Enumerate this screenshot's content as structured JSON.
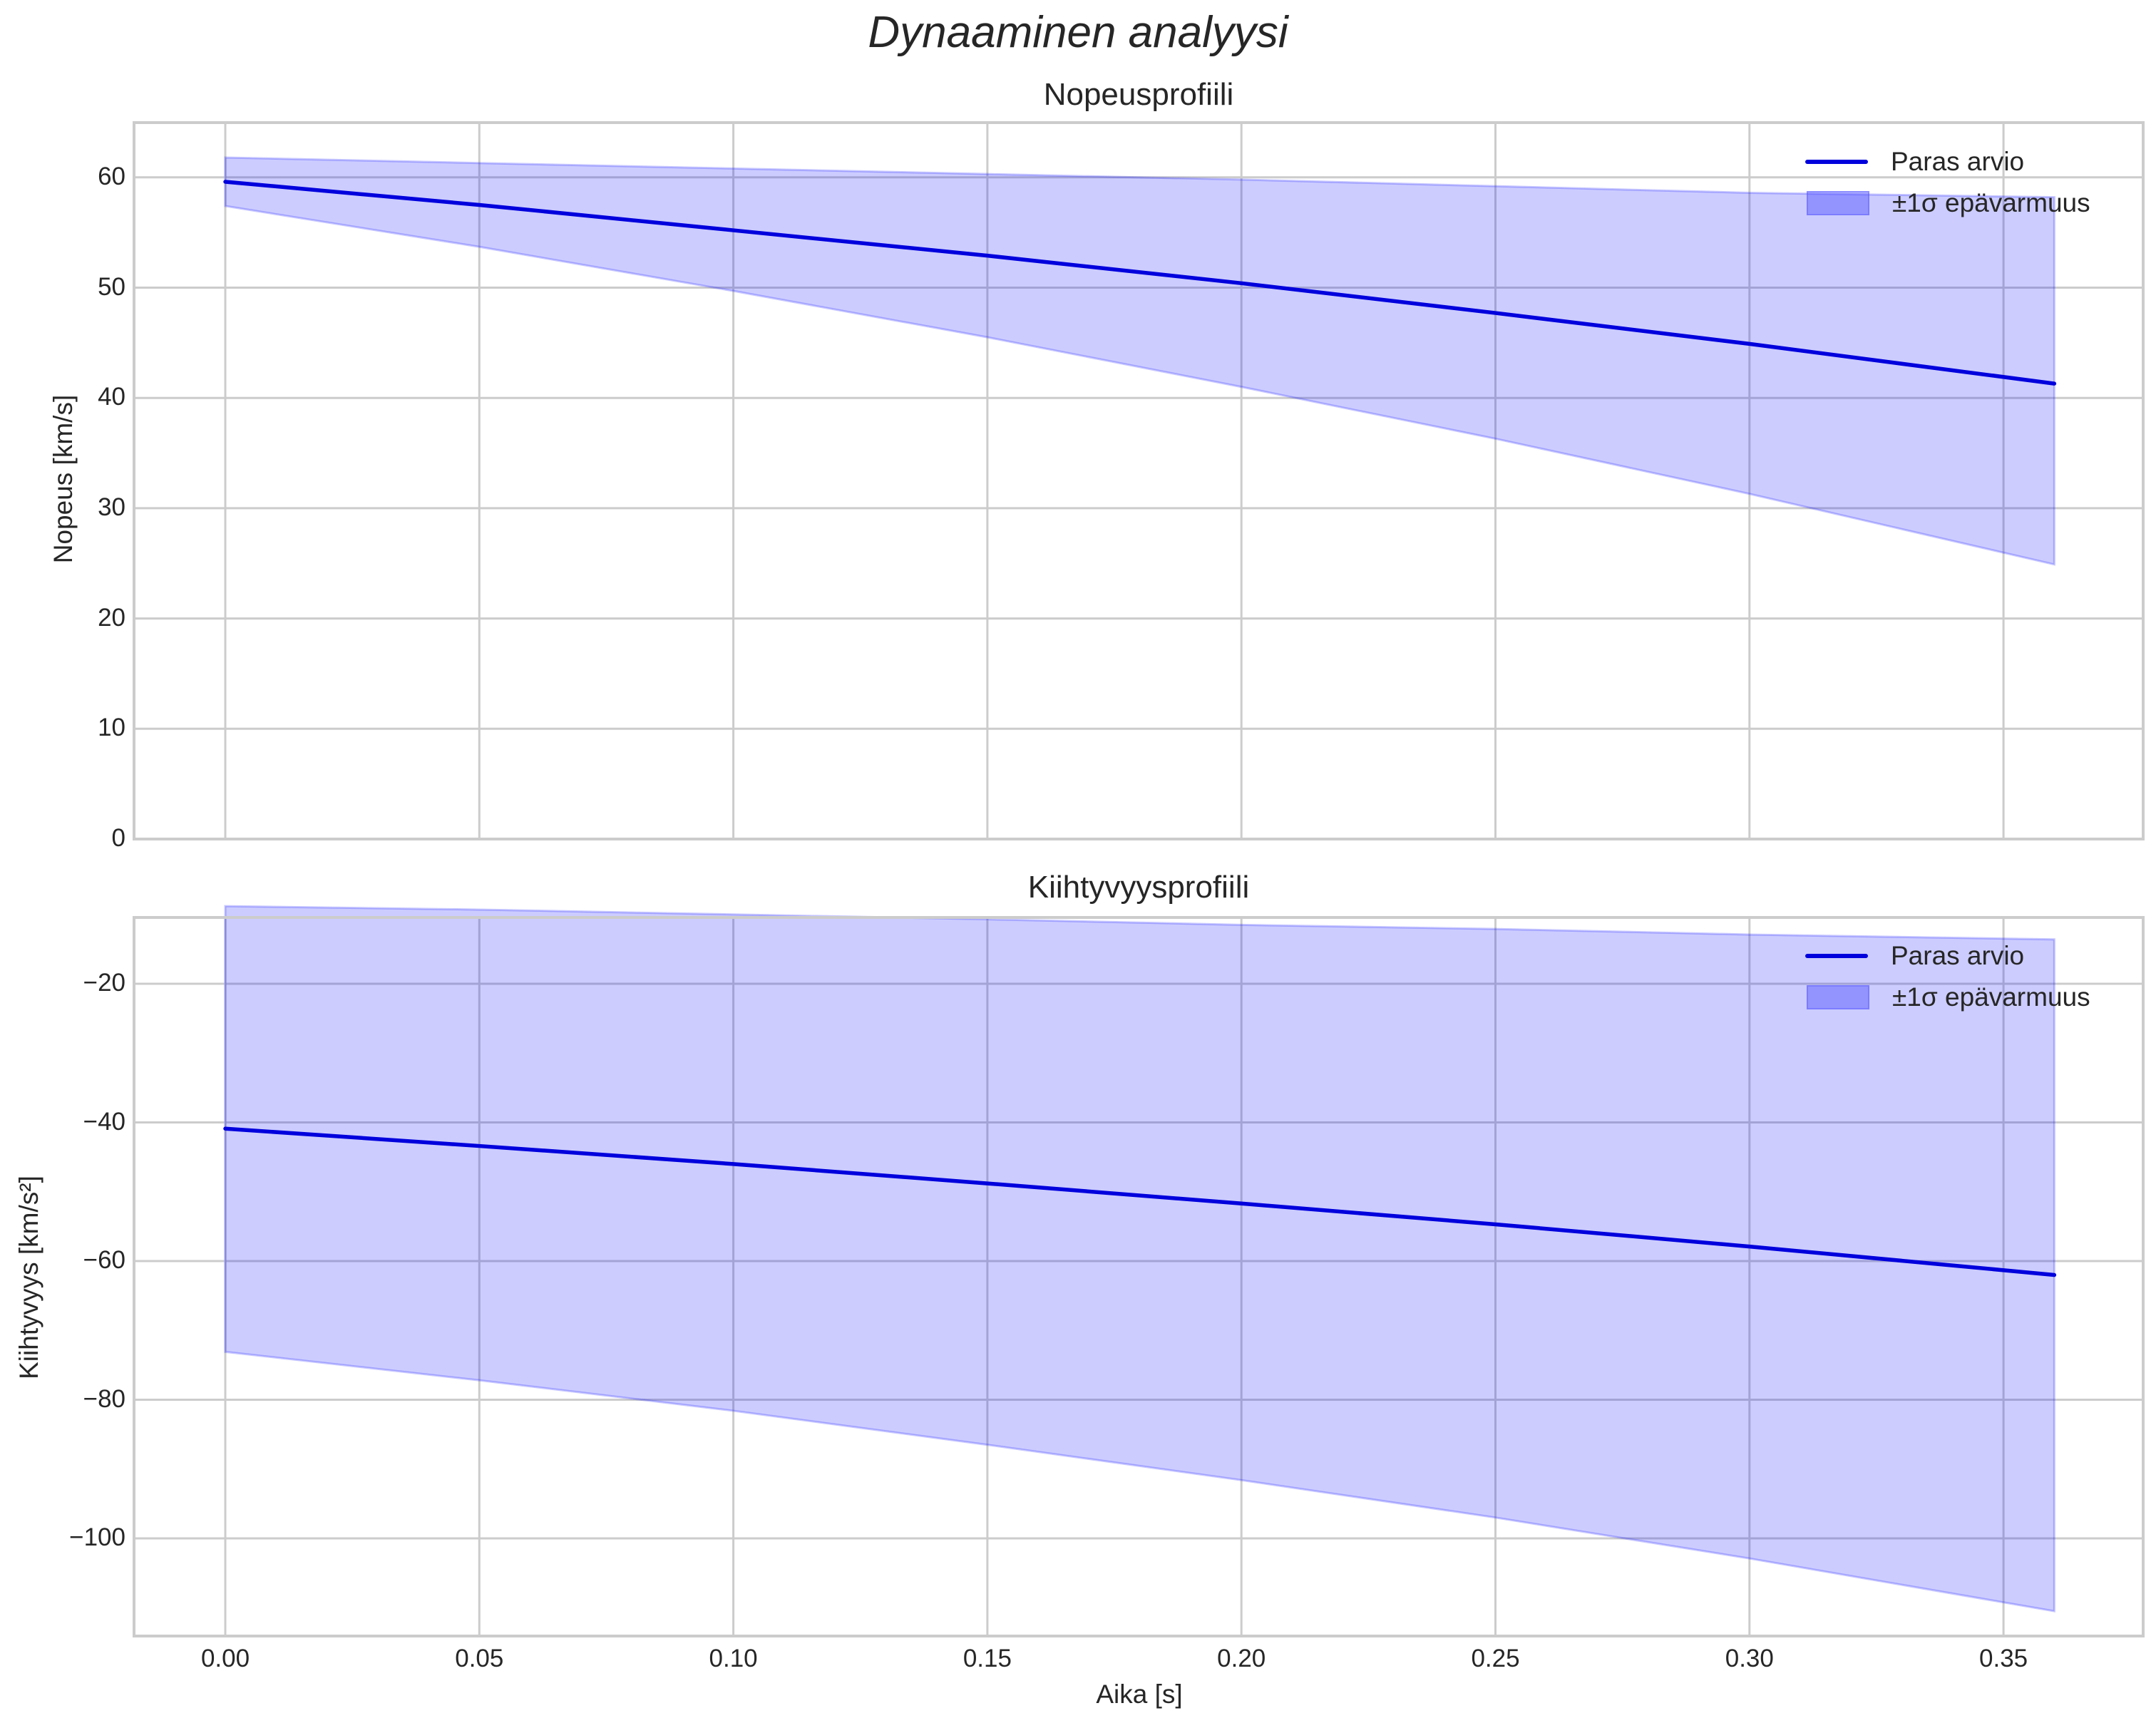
{
  "figure": {
    "suptitle": "Dynaaminen analyysi",
    "colors": {
      "line": "#0000dd",
      "band_fill": "#ccccfa",
      "band_edge": "#a0a0f4",
      "grid": "#cccccc",
      "spine": "#cccccc",
      "text": "#262626"
    }
  },
  "panels": [
    {
      "title": "Nopeusprofiili",
      "ylabel": "Nopeus [km/s]",
      "yticks": [
        "60",
        "50",
        "40",
        "30",
        "20",
        "10",
        "0"
      ],
      "legend": {
        "line_label": "Paras arvio",
        "band_label": "±1σ epävarmuus"
      }
    },
    {
      "title": "Kiihtyvyysprofiili",
      "ylabel": "Kiihtyvyys [km/s²]",
      "yticks": [
        "−20",
        "−40",
        "−60",
        "−80",
        "−100"
      ],
      "legend": {
        "line_label": "Paras arvio",
        "band_label": "±1σ epävarmuus"
      }
    }
  ],
  "xaxis": {
    "label": "Aika [s]",
    "ticks": [
      "0.00",
      "0.05",
      "0.10",
      "0.15",
      "0.20",
      "0.25",
      "0.30",
      "0.35"
    ]
  },
  "chart_data": [
    {
      "type": "line",
      "title": "Nopeusprofiili",
      "xlabel": "",
      "ylabel": "Nopeus [km/s]",
      "xlim": [
        -0.018,
        0.378
      ],
      "ylim": [
        0,
        65
      ],
      "grid": true,
      "legend_position": "upper right",
      "x": [
        0.0,
        0.05,
        0.1,
        0.15,
        0.2,
        0.25,
        0.3,
        0.36
      ],
      "series": [
        {
          "name": "Paras arvio",
          "values": [
            59.6,
            57.5,
            55.2,
            52.9,
            50.4,
            47.7,
            44.9,
            41.3
          ]
        },
        {
          "name": "±1σ epävarmuus (upper)",
          "values": [
            61.8,
            61.3,
            60.8,
            60.3,
            59.8,
            59.2,
            58.6,
            58.2
          ]
        },
        {
          "name": "±1σ epävarmuus (lower)",
          "values": [
            57.4,
            53.7,
            49.7,
            45.5,
            41.0,
            36.3,
            31.3,
            24.9
          ]
        }
      ]
    },
    {
      "type": "line",
      "title": "Kiihtyvyysprofiili",
      "xlabel": "Aika [s]",
      "ylabel": "Kiihtyvyys [km/s²]",
      "xlim": [
        -0.018,
        0.378
      ],
      "ylim": [
        -116,
        -6
      ],
      "grid": true,
      "legend_position": "upper right",
      "x": [
        0.0,
        0.05,
        0.1,
        0.15,
        0.2,
        0.25,
        0.3,
        0.36
      ],
      "series": [
        {
          "name": "Paras arvio",
          "values": [
            -40.9,
            -43.4,
            -46.0,
            -48.8,
            -51.7,
            -54.7,
            -57.9,
            -62.0
          ]
        },
        {
          "name": "±1σ epävarmuus (upper)",
          "values": [
            -8.8,
            -9.3,
            -10.0,
            -10.7,
            -11.5,
            -12.1,
            -12.9,
            -13.6
          ]
        },
        {
          "name": "±1σ epävarmuus (lower)",
          "values": [
            -73.1,
            -77.2,
            -81.6,
            -86.5,
            -91.6,
            -97.0,
            -102.9,
            -110.5
          ]
        }
      ]
    }
  ]
}
